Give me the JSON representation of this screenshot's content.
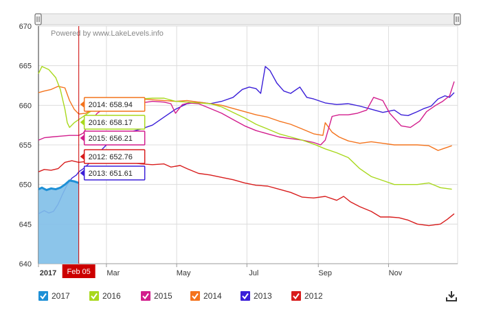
{
  "chart_data": {
    "type": "line",
    "credit": "Powered by www.LakeLevels.info",
    "ylim": [
      640,
      670
    ],
    "yticks": [
      640,
      645,
      650,
      655,
      660,
      665,
      670
    ],
    "xlim": [
      1,
      365
    ],
    "xticks": [
      {
        "label": "2017",
        "day": 1
      },
      {
        "label": "Mar",
        "day": 60
      },
      {
        "label": "May",
        "day": 121
      },
      {
        "label": "Jul",
        "day": 182
      },
      {
        "label": "Sep",
        "day": 244
      },
      {
        "label": "Nov",
        "day": 305
      }
    ],
    "grid": true,
    "crosshair": {
      "label": "Feb 05",
      "day": 36
    },
    "tooltips": [
      {
        "series": "2014",
        "text": "2014: 658.94"
      },
      {
        "series": "2016",
        "text": "2016: 658.17"
      },
      {
        "series": "2015",
        "text": "2015: 656.21"
      },
      {
        "series": "2012",
        "text": "2012: 652.76"
      },
      {
        "series": "2013",
        "text": "2013: 651.61"
      }
    ],
    "series": [
      {
        "name": "2017",
        "color": "#1e90d6",
        "area": true,
        "points": [
          [
            1,
            649.4
          ],
          [
            4,
            649.6
          ],
          [
            8,
            649.3
          ],
          [
            12,
            649.5
          ],
          [
            16,
            649.4
          ],
          [
            20,
            649.6
          ],
          [
            24,
            650.0
          ],
          [
            28,
            650.5
          ],
          [
            32,
            650.4
          ],
          [
            36,
            650.2
          ]
        ]
      },
      {
        "name": "2016",
        "color": "#a8d81c",
        "points": [
          [
            1,
            664.0
          ],
          [
            4,
            664.9
          ],
          [
            10,
            664.5
          ],
          [
            16,
            663.5
          ],
          [
            20,
            662.0
          ],
          [
            24,
            659.5
          ],
          [
            26,
            657.8
          ],
          [
            28,
            657.2
          ],
          [
            32,
            657.8
          ],
          [
            36,
            658.2
          ],
          [
            42,
            658.8
          ],
          [
            50,
            659.6
          ],
          [
            60,
            660.0
          ],
          [
            70,
            660.4
          ],
          [
            80,
            660.6
          ],
          [
            90,
            660.8
          ],
          [
            100,
            660.9
          ],
          [
            110,
            660.9
          ],
          [
            120,
            660.5
          ],
          [
            130,
            660.4
          ],
          [
            140,
            660.3
          ],
          [
            150,
            660.2
          ],
          [
            160,
            659.8
          ],
          [
            170,
            659.1
          ],
          [
            180,
            658.4
          ],
          [
            190,
            657.6
          ],
          [
            200,
            657.0
          ],
          [
            210,
            656.4
          ],
          [
            220,
            656.0
          ],
          [
            230,
            655.6
          ],
          [
            240,
            655.1
          ],
          [
            250,
            654.5
          ],
          [
            260,
            654.0
          ],
          [
            270,
            653.4
          ],
          [
            280,
            652.0
          ],
          [
            290,
            651.0
          ],
          [
            300,
            650.5
          ],
          [
            310,
            650.0
          ],
          [
            320,
            650.0
          ],
          [
            330,
            650.0
          ],
          [
            340,
            650.2
          ],
          [
            350,
            649.6
          ],
          [
            360,
            649.4
          ]
        ]
      },
      {
        "name": "2015",
        "color": "#d21c8c",
        "points": [
          [
            1,
            655.6
          ],
          [
            6,
            655.9
          ],
          [
            12,
            656.0
          ],
          [
            20,
            656.1
          ],
          [
            28,
            656.2
          ],
          [
            36,
            656.2
          ],
          [
            40,
            656.5
          ],
          [
            46,
            658.0
          ],
          [
            52,
            659.0
          ],
          [
            58,
            659.6
          ],
          [
            64,
            659.8
          ],
          [
            70,
            659.9
          ],
          [
            80,
            660.1
          ],
          [
            90,
            660.3
          ],
          [
            100,
            660.5
          ],
          [
            110,
            660.4
          ],
          [
            116,
            660.2
          ],
          [
            120,
            659.0
          ],
          [
            126,
            660.1
          ],
          [
            132,
            660.3
          ],
          [
            140,
            660.2
          ],
          [
            150,
            659.6
          ],
          [
            160,
            659.0
          ],
          [
            170,
            658.2
          ],
          [
            180,
            657.4
          ],
          [
            190,
            656.8
          ],
          [
            200,
            656.4
          ],
          [
            210,
            656.0
          ],
          [
            220,
            655.8
          ],
          [
            230,
            655.6
          ],
          [
            240,
            655.3
          ],
          [
            246,
            655.0
          ],
          [
            250,
            655.6
          ],
          [
            256,
            658.6
          ],
          [
            262,
            658.8
          ],
          [
            270,
            658.8
          ],
          [
            278,
            659.0
          ],
          [
            286,
            659.4
          ],
          [
            292,
            661.0
          ],
          [
            300,
            660.6
          ],
          [
            306,
            659.0
          ],
          [
            316,
            657.4
          ],
          [
            324,
            657.2
          ],
          [
            332,
            658.0
          ],
          [
            338,
            659.2
          ],
          [
            346,
            660.0
          ],
          [
            352,
            660.5
          ],
          [
            358,
            661.2
          ],
          [
            362,
            663.0
          ]
        ]
      },
      {
        "name": "2014",
        "color": "#f4731c",
        "points": [
          [
            1,
            661.6
          ],
          [
            6,
            661.8
          ],
          [
            12,
            662.0
          ],
          [
            18,
            662.4
          ],
          [
            24,
            662.2
          ],
          [
            28,
            660.6
          ],
          [
            32,
            659.5
          ],
          [
            36,
            658.9
          ],
          [
            42,
            659.0
          ],
          [
            50,
            659.6
          ],
          [
            60,
            660.2
          ],
          [
            70,
            660.5
          ],
          [
            80,
            660.7
          ],
          [
            90,
            660.8
          ],
          [
            100,
            660.7
          ],
          [
            110,
            660.6
          ],
          [
            120,
            660.5
          ],
          [
            130,
            660.6
          ],
          [
            140,
            660.4
          ],
          [
            150,
            660.2
          ],
          [
            160,
            660.0
          ],
          [
            170,
            659.6
          ],
          [
            180,
            659.2
          ],
          [
            190,
            658.8
          ],
          [
            200,
            658.5
          ],
          [
            210,
            658.0
          ],
          [
            220,
            657.6
          ],
          [
            230,
            657.0
          ],
          [
            240,
            656.4
          ],
          [
            248,
            656.2
          ],
          [
            250,
            657.8
          ],
          [
            256,
            656.6
          ],
          [
            262,
            656.0
          ],
          [
            270,
            655.5
          ],
          [
            280,
            655.2
          ],
          [
            290,
            655.4
          ],
          [
            300,
            655.2
          ],
          [
            310,
            655.0
          ],
          [
            320,
            655.0
          ],
          [
            330,
            655.0
          ],
          [
            340,
            654.9
          ],
          [
            348,
            654.3
          ],
          [
            352,
            654.5
          ],
          [
            360,
            654.9
          ]
        ]
      },
      {
        "name": "2013",
        "color": "#3a1ed8",
        "points": [
          [
            1,
            646.3
          ],
          [
            6,
            646.7
          ],
          [
            10,
            646.4
          ],
          [
            14,
            646.6
          ],
          [
            18,
            647.5
          ],
          [
            22,
            648.8
          ],
          [
            26,
            650.0
          ],
          [
            30,
            650.8
          ],
          [
            34,
            651.2
          ],
          [
            36,
            651.6
          ],
          [
            40,
            652.0
          ],
          [
            46,
            652.8
          ],
          [
            52,
            653.8
          ],
          [
            60,
            655.0
          ],
          [
            70,
            656.0
          ],
          [
            80,
            656.6
          ],
          [
            90,
            657.0
          ],
          [
            100,
            657.5
          ],
          [
            110,
            658.5
          ],
          [
            120,
            659.5
          ],
          [
            130,
            660.2
          ],
          [
            140,
            660.4
          ],
          [
            150,
            660.2
          ],
          [
            160,
            660.5
          ],
          [
            170,
            661.0
          ],
          [
            178,
            662.0
          ],
          [
            184,
            662.3
          ],
          [
            190,
            662.1
          ],
          [
            194,
            661.5
          ],
          [
            198,
            664.9
          ],
          [
            202,
            664.4
          ],
          [
            208,
            662.8
          ],
          [
            214,
            661.8
          ],
          [
            220,
            661.5
          ],
          [
            228,
            662.3
          ],
          [
            234,
            661.0
          ],
          [
            240,
            660.8
          ],
          [
            250,
            660.3
          ],
          [
            260,
            660.1
          ],
          [
            270,
            660.2
          ],
          [
            280,
            659.9
          ],
          [
            290,
            659.5
          ],
          [
            300,
            659.1
          ],
          [
            310,
            659.4
          ],
          [
            316,
            658.8
          ],
          [
            322,
            658.7
          ],
          [
            330,
            659.2
          ],
          [
            336,
            659.6
          ],
          [
            342,
            659.9
          ],
          [
            348,
            660.8
          ],
          [
            354,
            661.2
          ],
          [
            358,
            661.0
          ],
          [
            362,
            661.6
          ]
        ]
      },
      {
        "name": "2012",
        "color": "#d81c1c",
        "points": [
          [
            1,
            651.6
          ],
          [
            6,
            651.9
          ],
          [
            12,
            651.8
          ],
          [
            18,
            652.0
          ],
          [
            24,
            652.8
          ],
          [
            30,
            653.0
          ],
          [
            36,
            652.8
          ],
          [
            42,
            652.9
          ],
          [
            50,
            653.0
          ],
          [
            60,
            652.9
          ],
          [
            70,
            653.0
          ],
          [
            80,
            652.8
          ],
          [
            90,
            652.6
          ],
          [
            100,
            652.5
          ],
          [
            110,
            652.6
          ],
          [
            116,
            652.2
          ],
          [
            124,
            652.4
          ],
          [
            130,
            652.0
          ],
          [
            140,
            651.4
          ],
          [
            150,
            651.2
          ],
          [
            160,
            650.9
          ],
          [
            170,
            650.6
          ],
          [
            180,
            650.2
          ],
          [
            190,
            649.9
          ],
          [
            200,
            649.8
          ],
          [
            210,
            649.4
          ],
          [
            220,
            649.0
          ],
          [
            230,
            648.4
          ],
          [
            240,
            648.3
          ],
          [
            250,
            648.5
          ],
          [
            260,
            648.0
          ],
          [
            266,
            648.5
          ],
          [
            272,
            647.8
          ],
          [
            280,
            647.2
          ],
          [
            290,
            646.6
          ],
          [
            298,
            645.9
          ],
          [
            306,
            645.9
          ],
          [
            314,
            645.8
          ],
          [
            322,
            645.5
          ],
          [
            330,
            645.0
          ],
          [
            340,
            644.8
          ],
          [
            350,
            645.0
          ],
          [
            356,
            645.6
          ],
          [
            362,
            646.3
          ]
        ]
      }
    ]
  },
  "legend": [
    {
      "label": "2017",
      "color": "#1e90d6"
    },
    {
      "label": "2016",
      "color": "#a8d81c"
    },
    {
      "label": "2015",
      "color": "#d21c8c"
    },
    {
      "label": "2014",
      "color": "#f4731c"
    },
    {
      "label": "2013",
      "color": "#3a1ed8"
    },
    {
      "label": "2012",
      "color": "#d81c1c"
    }
  ],
  "icons": {
    "download": "download-icon",
    "check": "check-icon",
    "handle": "drag-handle-icon"
  }
}
